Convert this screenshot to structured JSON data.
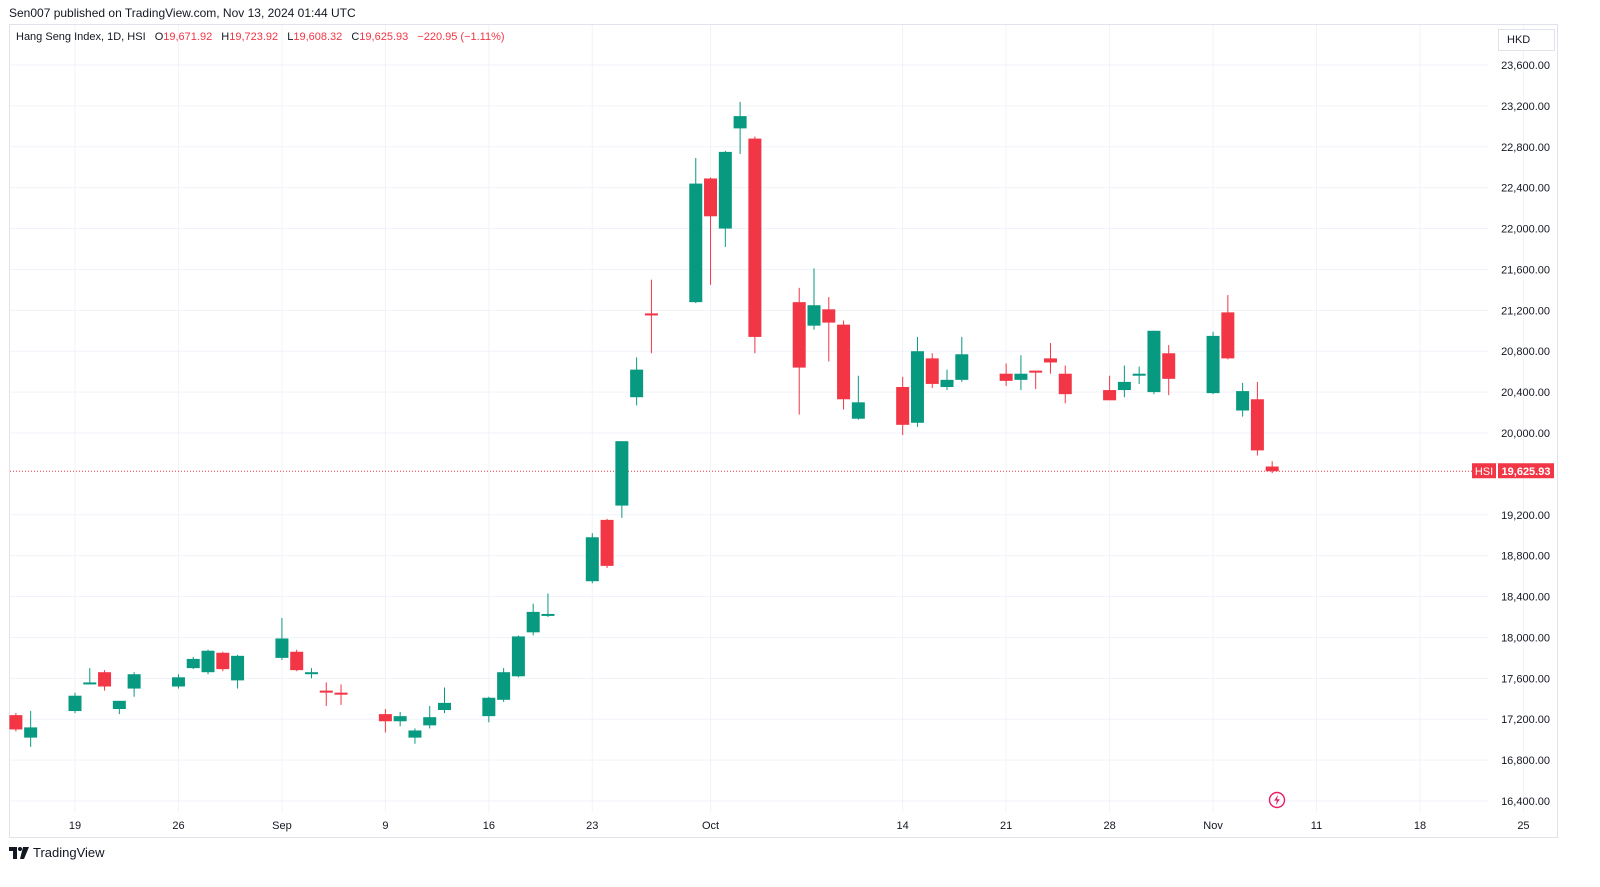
{
  "header": {
    "published_line": "Sen007 published on TradingView.com, Nov 13, 2024 01:44 UTC"
  },
  "legend": {
    "symbol_text": "Hang Seng Index, 1D, HSI",
    "o_label": "O",
    "o_value": "19,671.92",
    "h_label": "H",
    "h_value": "19,723.92",
    "l_label": "L",
    "l_value": "19,608.32",
    "c_label": "C",
    "c_value": "19,625.93",
    "change_text": "−220.95 (−1.11%)"
  },
  "currency": "HKD",
  "last_price": {
    "symbol": "HSI",
    "value": "19,625.93"
  },
  "footer": {
    "brand": "TradingView"
  },
  "colors": {
    "up": "#089981",
    "down": "#f23645",
    "grid": "#f0f3fa",
    "axis_text": "#131722"
  },
  "icons": {
    "bolt": "bolt-icon",
    "logo": "tradingview-logo-icon"
  },
  "chart_data": {
    "type": "candlestick",
    "title": "Hang Seng Index, 1D, HSI",
    "currency": "HKD",
    "ylim": [
      16200,
      23800
    ],
    "y_ticks": [
      "23,600.00",
      "23,200.00",
      "22,800.00",
      "22,400.00",
      "22,000.00",
      "21,600.00",
      "21,200.00",
      "20,800.00",
      "20,400.00",
      "20,000.00",
      "19,200.00",
      "18,800.00",
      "18,400.00",
      "18,000.00",
      "17,600.00",
      "17,200.00",
      "16,800.00",
      "16,400.00"
    ],
    "y_tick_values": [
      23600,
      23200,
      22800,
      22400,
      22000,
      21600,
      21200,
      20800,
      20400,
      20000,
      19200,
      18800,
      18400,
      18000,
      17600,
      17200,
      16800,
      16400
    ],
    "x_ticks": [
      "19",
      "26",
      "Sep",
      "9",
      "16",
      "23",
      "Oct",
      "14",
      "21",
      "28",
      "Nov",
      "11",
      "18",
      "25"
    ],
    "x_tick_dates": [
      "2024-08-19",
      "2024-08-26",
      "2024-09-02",
      "2024-09-09",
      "2024-09-16",
      "2024-09-23",
      "2024-10-01",
      "2024-10-14",
      "2024-10-21",
      "2024-10-28",
      "2024-11-04",
      "2024-11-11",
      "2024-11-18",
      "2024-11-25"
    ],
    "grid": true,
    "last_value": 19625.93,
    "candles": [
      {
        "date": "2024-08-15",
        "o": 17240,
        "h": 17260,
        "l": 17080,
        "c": 17100
      },
      {
        "date": "2024-08-16",
        "o": 17020,
        "h": 17280,
        "l": 16930,
        "c": 17120
      },
      {
        "date": "2024-08-19",
        "o": 17280,
        "h": 17460,
        "l": 17260,
        "c": 17430
      },
      {
        "date": "2024-08-20",
        "o": 17560,
        "h": 17700,
        "l": 17540,
        "c": 17560
      },
      {
        "date": "2024-08-21",
        "o": 17660,
        "h": 17680,
        "l": 17480,
        "c": 17520
      },
      {
        "date": "2024-08-22",
        "o": 17300,
        "h": 17360,
        "l": 17250,
        "c": 17380
      },
      {
        "date": "2024-08-23",
        "o": 17500,
        "h": 17660,
        "l": 17420,
        "c": 17640
      },
      {
        "date": "2024-08-26",
        "o": 17520,
        "h": 17640,
        "l": 17500,
        "c": 17610
      },
      {
        "date": "2024-08-27",
        "o": 17700,
        "h": 17810,
        "l": 17690,
        "c": 17790
      },
      {
        "date": "2024-08-28",
        "o": 17660,
        "h": 17880,
        "l": 17640,
        "c": 17870
      },
      {
        "date": "2024-08-29",
        "o": 17850,
        "h": 17860,
        "l": 17670,
        "c": 17690
      },
      {
        "date": "2024-08-30",
        "o": 17580,
        "h": 17830,
        "l": 17500,
        "c": 17820
      },
      {
        "date": "2024-09-02",
        "o": 17800,
        "h": 18190,
        "l": 17780,
        "c": 17990
      },
      {
        "date": "2024-09-03",
        "o": 17860,
        "h": 17880,
        "l": 17670,
        "c": 17680
      },
      {
        "date": "2024-09-04",
        "o": 17660,
        "h": 17700,
        "l": 17600,
        "c": 17660
      },
      {
        "date": "2024-09-05",
        "o": 17480,
        "h": 17560,
        "l": 17330,
        "c": 17460
      },
      {
        "date": "2024-09-06",
        "o": 17460,
        "h": 17540,
        "l": 17340,
        "c": 17440
      },
      {
        "date": "2024-09-09",
        "o": 17250,
        "h": 17300,
        "l": 17070,
        "c": 17180
      },
      {
        "date": "2024-09-10",
        "o": 17180,
        "h": 17270,
        "l": 17130,
        "c": 17230
      },
      {
        "date": "2024-09-11",
        "o": 17020,
        "h": 17110,
        "l": 16960,
        "c": 17090
      },
      {
        "date": "2024-09-12",
        "o": 17140,
        "h": 17330,
        "l": 17110,
        "c": 17220
      },
      {
        "date": "2024-09-13",
        "o": 17290,
        "h": 17510,
        "l": 17260,
        "c": 17360
      },
      {
        "date": "2024-09-16",
        "o": 17230,
        "h": 17420,
        "l": 17170,
        "c": 17410
      },
      {
        "date": "2024-09-17",
        "o": 17390,
        "h": 17700,
        "l": 17370,
        "c": 17660
      },
      {
        "date": "2024-09-18",
        "o": 17620,
        "h": 18020,
        "l": 17610,
        "c": 18010
      },
      {
        "date": "2024-09-19",
        "o": 18050,
        "h": 18330,
        "l": 18020,
        "c": 18250
      },
      {
        "date": "2024-09-20",
        "o": 18220,
        "h": 18430,
        "l": 18200,
        "c": 18230
      },
      {
        "date": "2024-09-23",
        "o": 18550,
        "h": 19020,
        "l": 18530,
        "c": 18980
      },
      {
        "date": "2024-09-24",
        "o": 19150,
        "h": 19160,
        "l": 18680,
        "c": 18700
      },
      {
        "date": "2024-09-25",
        "o": 19290,
        "h": 19920,
        "l": 19170,
        "c": 19920
      },
      {
        "date": "2024-09-26",
        "o": 20350,
        "h": 20740,
        "l": 20270,
        "c": 20620
      },
      {
        "date": "2024-09-27",
        "o": 21170,
        "h": 21500,
        "l": 20780,
        "c": 21150
      },
      {
        "date": "2024-09-30",
        "o": 21280,
        "h": 22690,
        "l": 21270,
        "c": 22440
      },
      {
        "date": "2024-10-01",
        "o": 22490,
        "h": 22500,
        "l": 21450,
        "c": 22120
      },
      {
        "date": "2024-10-02",
        "o": 22000,
        "h": 22760,
        "l": 21820,
        "c": 22750
      },
      {
        "date": "2024-10-03",
        "o": 22980,
        "h": 23240,
        "l": 22730,
        "c": 23100
      },
      {
        "date": "2024-10-04",
        "o": 22880,
        "h": 22900,
        "l": 20780,
        "c": 20940
      },
      {
        "date": "2024-10-07",
        "o": 21280,
        "h": 21420,
        "l": 20180,
        "c": 20640
      },
      {
        "date": "2024-10-08",
        "o": 21050,
        "h": 21610,
        "l": 21010,
        "c": 21250
      },
      {
        "date": "2024-10-09",
        "o": 21210,
        "h": 21330,
        "l": 20700,
        "c": 21080
      },
      {
        "date": "2024-10-10",
        "o": 21060,
        "h": 21100,
        "l": 20230,
        "c": 20330
      },
      {
        "date": "2024-10-11",
        "o": 20140,
        "h": 20560,
        "l": 20130,
        "c": 20300
      },
      {
        "date": "2024-10-14",
        "o": 20450,
        "h": 20550,
        "l": 19980,
        "c": 20080
      },
      {
        "date": "2024-10-15",
        "o": 20100,
        "h": 20940,
        "l": 20060,
        "c": 20800
      },
      {
        "date": "2024-10-16",
        "o": 20730,
        "h": 20780,
        "l": 20440,
        "c": 20480
      },
      {
        "date": "2024-10-17",
        "o": 20450,
        "h": 20620,
        "l": 20420,
        "c": 20520
      },
      {
        "date": "2024-10-18",
        "o": 20520,
        "h": 20940,
        "l": 20500,
        "c": 20770
      },
      {
        "date": "2024-10-21",
        "o": 20580,
        "h": 20680,
        "l": 20460,
        "c": 20510
      },
      {
        "date": "2024-10-22",
        "o": 20520,
        "h": 20760,
        "l": 20420,
        "c": 20580
      },
      {
        "date": "2024-10-23",
        "o": 20610,
        "h": 20610,
        "l": 20430,
        "c": 20600
      },
      {
        "date": "2024-10-24",
        "o": 20730,
        "h": 20880,
        "l": 20580,
        "c": 20690
      },
      {
        "date": "2024-10-25",
        "o": 20580,
        "h": 20660,
        "l": 20290,
        "c": 20380
      },
      {
        "date": "2024-10-28",
        "o": 20420,
        "h": 20560,
        "l": 20320,
        "c": 20320
      },
      {
        "date": "2024-10-29",
        "o": 20420,
        "h": 20660,
        "l": 20350,
        "c": 20500
      },
      {
        "date": "2024-10-30",
        "o": 20580,
        "h": 20650,
        "l": 20480,
        "c": 20580
      },
      {
        "date": "2024-10-31",
        "o": 20400,
        "h": 21000,
        "l": 20380,
        "c": 21000
      },
      {
        "date": "2024-11-01",
        "o": 20780,
        "h": 20860,
        "l": 20370,
        "c": 20530
      },
      {
        "date": "2024-11-04",
        "o": 20390,
        "h": 20990,
        "l": 20380,
        "c": 20950
      },
      {
        "date": "2024-11-05",
        "o": 21180,
        "h": 21350,
        "l": 20720,
        "c": 20730
      },
      {
        "date": "2024-11-06",
        "o": 20220,
        "h": 20490,
        "l": 20160,
        "c": 20410
      },
      {
        "date": "2024-11-07",
        "o": 20330,
        "h": 20500,
        "l": 19780,
        "c": 19830
      },
      {
        "date": "2024-11-08",
        "o": 19672,
        "h": 19724,
        "l": 19608,
        "c": 19626
      }
    ]
  }
}
